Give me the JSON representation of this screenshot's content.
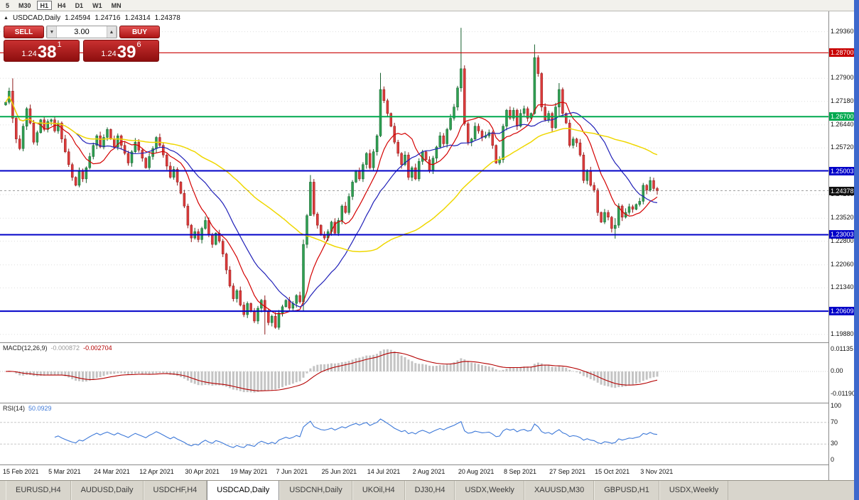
{
  "toolbar": {
    "periods": [
      {
        "label": "5"
      },
      {
        "label": "M30"
      },
      {
        "label": "H1",
        "active": true
      },
      {
        "label": "H4"
      },
      {
        "label": "D1"
      },
      {
        "label": "W1"
      },
      {
        "label": "MN"
      }
    ]
  },
  "chart": {
    "header": {
      "collapse": "▲",
      "title": "USDCAD,Daily",
      "open": "1.24594",
      "high": "1.24716",
      "low": "1.24314",
      "close": "1.24378"
    },
    "trade_panel": {
      "sell_label": "SELL",
      "buy_label": "BUY",
      "volume": "3.00",
      "sell": {
        "prefix": "1.24",
        "big": "38",
        "sup": "1"
      },
      "buy": {
        "prefix": "1.24",
        "big": "39",
        "sup": "6"
      }
    },
    "hlines": [
      {
        "price": 1.287,
        "color": "#C80000",
        "width": 1.2
      },
      {
        "price": 1.267,
        "color": "#00A94F",
        "width": 2
      },
      {
        "price": 1.25003,
        "color": "#0000C8",
        "width": 2
      },
      {
        "price": 1.23003,
        "color": "#0000C8",
        "width": 2
      },
      {
        "price": 1.20609,
        "color": "#0000C8",
        "width": 2
      }
    ],
    "current_price": 1.24378
  },
  "chart_data": {
    "type": "candlestick",
    "symbol": "USDCAD",
    "timeframe": "Daily",
    "price_axis": {
      "top": 1.2993,
      "bottom": 1.197
    },
    "y_ticks": [
      1.2936,
      1.279,
      1.2718,
      1.2644,
      1.2572,
      1.2426,
      1.2352,
      1.228,
      1.2206,
      1.2134,
      1.1988
    ],
    "closes": [
      1.2715,
      1.275,
      1.2665,
      1.26,
      1.257,
      1.264,
      1.2695,
      1.265,
      1.259,
      1.262,
      1.266,
      1.263,
      1.2655,
      1.266,
      1.2625,
      1.265,
      1.26,
      1.256,
      1.252,
      1.248,
      1.2455,
      1.25,
      1.2475,
      1.251,
      1.2545,
      1.258,
      1.261,
      1.2575,
      1.2605,
      1.263,
      1.26,
      1.2575,
      1.261,
      1.258,
      1.2555,
      1.2525,
      1.256,
      1.259,
      1.2565,
      1.254,
      1.251,
      1.2545,
      1.257,
      1.2605,
      1.258,
      1.255,
      1.2515,
      1.248,
      1.2505,
      1.2465,
      1.243,
      1.239,
      1.233,
      1.229,
      1.231,
      1.2285,
      1.232,
      1.2345,
      1.23,
      1.227,
      1.2305,
      1.228,
      1.224,
      1.219,
      1.214,
      1.21,
      1.2125,
      1.208,
      1.205,
      1.2085,
      1.206,
      1.203,
      1.207,
      1.2095,
      1.206,
      1.2025,
      1.2045,
      1.201,
      1.2055,
      1.2075,
      1.2095,
      1.207,
      1.2085,
      1.211,
      1.209,
      1.227,
      1.236,
      1.2465,
      1.2365,
      1.233,
      1.23,
      1.229,
      1.231,
      1.234,
      1.2305,
      1.2345,
      1.239,
      1.237,
      1.242,
      1.2465,
      1.25,
      1.2475,
      1.252,
      1.2555,
      1.251,
      1.256,
      1.261,
      1.2755,
      1.272,
      1.268,
      1.264,
      1.259,
      1.2555,
      1.252,
      1.255,
      1.248,
      1.251,
      1.2475,
      1.253,
      1.256,
      1.2535,
      1.25,
      1.254,
      1.2575,
      1.261,
      1.2585,
      1.263,
      1.2665,
      1.27,
      1.276,
      1.282,
      1.2648,
      1.259,
      1.26,
      1.264,
      1.2625,
      1.2605,
      1.261,
      1.262,
      1.258,
      1.2525,
      1.2535,
      1.264,
      1.269,
      1.2665,
      1.269,
      1.264,
      1.268,
      1.2695,
      1.2665,
      1.268,
      1.2855,
      1.2805,
      1.27,
      1.266,
      1.268,
      1.2635,
      1.27,
      1.2755,
      1.268,
      1.265,
      1.258,
      1.26,
      1.2588,
      1.255,
      1.247,
      1.25,
      1.2455,
      1.244,
      1.237,
      1.234,
      1.237,
      1.2355,
      1.232,
      1.233,
      1.239,
      1.2355,
      1.237,
      1.2388,
      1.238,
      1.2395,
      1.2405,
      1.2455,
      1.244,
      1.247,
      1.2445,
      1.24378
    ],
    "spikes": {
      "2": [
        1.279,
        1.265
      ],
      "74": [
        1.211,
        1.1988
      ],
      "85": [
        1.2285,
        1.206
      ],
      "87": [
        1.2487,
        1.2362
      ],
      "107": [
        1.2807,
        1.2606
      ],
      "130": [
        1.2948,
        1.2748
      ],
      "151": [
        1.2896,
        1.2676
      ],
      "158": [
        1.2775,
        1.2672
      ],
      "174": [
        1.2352,
        1.2288
      ]
    },
    "ma": [
      {
        "period": 10,
        "color": "#D40000",
        "width": 1.2
      },
      {
        "period": 21,
        "color": "#2020B8",
        "width": 1.2
      },
      {
        "period": 55,
        "color": "#EFD700",
        "width": 1.5
      }
    ],
    "colors": {
      "bull": "#2FA052",
      "bull_border": "#17602E",
      "bear": "#DC3B3B",
      "bear_border": "#8F1B1B"
    },
    "date_labels": [
      {
        "index": 0,
        "text": "15 Feb 2021"
      },
      {
        "index": 13,
        "text": "5 Mar 2021"
      },
      {
        "index": 26,
        "text": "24 Mar 2021"
      },
      {
        "index": 39,
        "text": "12 Apr 2021"
      },
      {
        "index": 52,
        "text": "30 Apr 2021"
      },
      {
        "index": 65,
        "text": "19 May 2021"
      },
      {
        "index": 78,
        "text": "7 Jun 2021"
      },
      {
        "index": 91,
        "text": "25 Jun 2021"
      },
      {
        "index": 104,
        "text": "14 Jul 2021"
      },
      {
        "index": 117,
        "text": "2 Aug 2021"
      },
      {
        "index": 130,
        "text": "20 Aug 2021"
      },
      {
        "index": 143,
        "text": "8 Sep 2021"
      },
      {
        "index": 156,
        "text": "27 Sep 2021"
      },
      {
        "index": 169,
        "text": "15 Oct 2021"
      },
      {
        "index": 182,
        "text": "3 Nov 2021"
      }
    ]
  },
  "macd": {
    "label": "MACD(12,26,9)",
    "macd_value": "-0.000872",
    "signal_value": "-0.002704",
    "axis": [
      {
        "v": 0.01135,
        "label": "0.01135"
      },
      {
        "v": 0,
        "label": "0.00"
      },
      {
        "v": -0.0119,
        "label": "-0.01190"
      }
    ]
  },
  "rsi": {
    "label": "RSI(14)",
    "value": "50.0929",
    "axis": [
      {
        "v": 100,
        "label": "100"
      },
      {
        "v": 70,
        "label": "70"
      },
      {
        "v": 30,
        "label": "30"
      },
      {
        "v": 0,
        "label": "0"
      }
    ]
  },
  "tabs": [
    {
      "label": "EURUSD,H4"
    },
    {
      "label": "AUDUSD,Daily"
    },
    {
      "label": "USDCHF,H4"
    },
    {
      "label": "USDCAD,Daily",
      "active": true
    },
    {
      "label": "USDCNH,Daily"
    },
    {
      "label": "UKOil,H4"
    },
    {
      "label": "DJ30,H4"
    },
    {
      "label": "USDX,Weekly"
    },
    {
      "label": "XAUUSD,M30"
    },
    {
      "label": "GBPUSD,H1"
    },
    {
      "label": "USDX,Weekly"
    }
  ]
}
